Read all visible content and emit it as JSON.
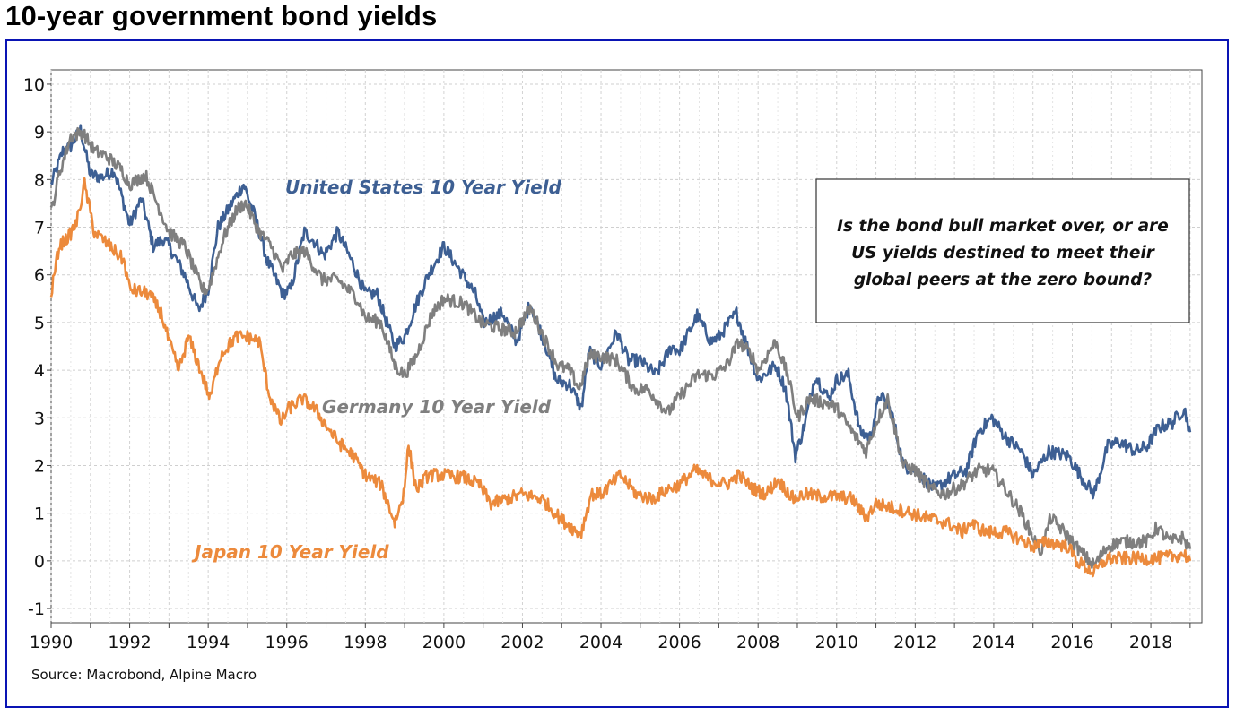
{
  "page": {
    "title": "10-year government bond yields",
    "source": "Source: Macrobond, Alpine Macro"
  },
  "chart_data": {
    "type": "line",
    "title": "10-year government bond yields",
    "xlabel": "",
    "ylabel": "",
    "xlim": [
      1990,
      2019.3
    ],
    "ylim": [
      -1.3,
      10.3
    ],
    "x_ticks": [
      "1990",
      "1992",
      "1994",
      "1996",
      "1998",
      "2000",
      "2002",
      "2004",
      "2006",
      "2008",
      "2010",
      "2012",
      "2014",
      "2016",
      "2018"
    ],
    "y_ticks": [
      "10",
      "9",
      "8",
      "7",
      "6",
      "5",
      "4",
      "3",
      "2",
      "1",
      "0",
      "-1"
    ],
    "grid": true,
    "annotation": {
      "lines": [
        "Is the bond bull market over, or are",
        "US yields destined to meet their",
        "global peers at the zero bound?"
      ]
    },
    "series": [
      {
        "name": "United States 10 Year Yield",
        "color": "#3d5f93",
        "points": [
          [
            1990.0,
            7.9
          ],
          [
            1990.3,
            8.6
          ],
          [
            1990.5,
            8.7
          ],
          [
            1990.75,
            9.05
          ],
          [
            1991.0,
            8.1
          ],
          [
            1991.3,
            8.05
          ],
          [
            1991.6,
            8.2
          ],
          [
            1991.85,
            7.5
          ],
          [
            1992.0,
            7.05
          ],
          [
            1992.3,
            7.6
          ],
          [
            1992.6,
            6.6
          ],
          [
            1992.85,
            6.75
          ],
          [
            1993.0,
            6.6
          ],
          [
            1993.4,
            6.0
          ],
          [
            1993.75,
            5.25
          ],
          [
            1994.0,
            5.7
          ],
          [
            1994.25,
            7.0
          ],
          [
            1994.6,
            7.5
          ],
          [
            1994.9,
            7.9
          ],
          [
            1995.2,
            7.2
          ],
          [
            1995.5,
            6.3
          ],
          [
            1995.9,
            5.6
          ],
          [
            1996.1,
            5.7
          ],
          [
            1996.45,
            6.9
          ],
          [
            1996.7,
            6.7
          ],
          [
            1996.95,
            6.4
          ],
          [
            1997.3,
            6.9
          ],
          [
            1997.7,
            6.2
          ],
          [
            1998.0,
            5.6
          ],
          [
            1998.3,
            5.6
          ],
          [
            1998.75,
            4.5
          ],
          [
            1999.0,
            4.7
          ],
          [
            1999.3,
            5.4
          ],
          [
            1999.6,
            6.0
          ],
          [
            2000.0,
            6.6
          ],
          [
            2000.4,
            6.1
          ],
          [
            2000.8,
            5.6
          ],
          [
            2001.0,
            5.0
          ],
          [
            2001.5,
            5.2
          ],
          [
            2001.85,
            4.6
          ],
          [
            2002.2,
            5.4
          ],
          [
            2002.6,
            4.5
          ],
          [
            2002.85,
            3.8
          ],
          [
            2003.2,
            3.7
          ],
          [
            2003.5,
            3.2
          ],
          [
            2003.7,
            4.4
          ],
          [
            2004.0,
            4.1
          ],
          [
            2004.4,
            4.8
          ],
          [
            2004.7,
            4.2
          ],
          [
            2005.0,
            4.2
          ],
          [
            2005.4,
            3.9
          ],
          [
            2005.8,
            4.5
          ],
          [
            2006.0,
            4.4
          ],
          [
            2006.45,
            5.15
          ],
          [
            2006.8,
            4.6
          ],
          [
            2007.0,
            4.7
          ],
          [
            2007.45,
            5.2
          ],
          [
            2007.8,
            4.3
          ],
          [
            2008.0,
            3.8
          ],
          [
            2008.45,
            4.1
          ],
          [
            2008.7,
            3.6
          ],
          [
            2008.95,
            2.2
          ],
          [
            2009.2,
            2.9
          ],
          [
            2009.45,
            3.9
          ],
          [
            2009.8,
            3.4
          ],
          [
            2010.0,
            3.8
          ],
          [
            2010.3,
            3.9
          ],
          [
            2010.6,
            2.7
          ],
          [
            2010.85,
            2.6
          ],
          [
            2011.1,
            3.5
          ],
          [
            2011.4,
            3.1
          ],
          [
            2011.7,
            2.0
          ],
          [
            2012.0,
            1.9
          ],
          [
            2012.5,
            1.5
          ],
          [
            2012.9,
            1.75
          ],
          [
            2013.3,
            1.9
          ],
          [
            2013.6,
            2.7
          ],
          [
            2013.95,
            3.0
          ],
          [
            2014.3,
            2.6
          ],
          [
            2014.7,
            2.3
          ],
          [
            2015.0,
            1.8
          ],
          [
            2015.4,
            2.3
          ],
          [
            2015.9,
            2.2
          ],
          [
            2016.2,
            1.8
          ],
          [
            2016.55,
            1.4
          ],
          [
            2016.9,
            2.4
          ],
          [
            2017.2,
            2.5
          ],
          [
            2017.6,
            2.3
          ],
          [
            2017.9,
            2.4
          ],
          [
            2018.2,
            2.8
          ],
          [
            2018.55,
            2.9
          ],
          [
            2018.85,
            3.2
          ],
          [
            2019.0,
            2.7
          ]
        ]
      },
      {
        "name": "Germany 10 Year Yield",
        "color": "#7f7f7f",
        "points": [
          [
            1990.0,
            7.3
          ],
          [
            1990.2,
            8.1
          ],
          [
            1990.5,
            8.9
          ],
          [
            1990.8,
            9.0
          ],
          [
            1991.1,
            8.6
          ],
          [
            1991.4,
            8.5
          ],
          [
            1991.8,
            8.2
          ],
          [
            1992.0,
            7.9
          ],
          [
            1992.4,
            8.1
          ],
          [
            1992.8,
            7.3
          ],
          [
            1993.0,
            6.9
          ],
          [
            1993.4,
            6.6
          ],
          [
            1993.85,
            5.7
          ],
          [
            1994.0,
            5.7
          ],
          [
            1994.4,
            6.8
          ],
          [
            1994.75,
            7.4
          ],
          [
            1994.95,
            7.5
          ],
          [
            1995.3,
            6.9
          ],
          [
            1995.6,
            6.6
          ],
          [
            1995.9,
            6.1
          ],
          [
            1996.1,
            6.4
          ],
          [
            1996.45,
            6.5
          ],
          [
            1996.9,
            5.9
          ],
          [
            1997.3,
            5.9
          ],
          [
            1997.8,
            5.5
          ],
          [
            1998.0,
            5.1
          ],
          [
            1998.4,
            5.0
          ],
          [
            1998.75,
            4.1
          ],
          [
            1999.0,
            3.9
          ],
          [
            1999.3,
            4.3
          ],
          [
            1999.7,
            5.2
          ],
          [
            2000.0,
            5.5
          ],
          [
            2000.5,
            5.4
          ],
          [
            2000.95,
            5.0
          ],
          [
            2001.3,
            4.9
          ],
          [
            2001.8,
            4.8
          ],
          [
            2002.2,
            5.3
          ],
          [
            2002.6,
            4.6
          ],
          [
            2002.9,
            4.1
          ],
          [
            2003.2,
            4.0
          ],
          [
            2003.45,
            3.6
          ],
          [
            2003.7,
            4.3
          ],
          [
            2004.0,
            4.3
          ],
          [
            2004.4,
            4.2
          ],
          [
            2004.85,
            3.6
          ],
          [
            2005.2,
            3.6
          ],
          [
            2005.7,
            3.1
          ],
          [
            2005.95,
            3.4
          ],
          [
            2006.45,
            3.9
          ],
          [
            2006.9,
            3.9
          ],
          [
            2007.2,
            4.1
          ],
          [
            2007.5,
            4.6
          ],
          [
            2007.85,
            4.3
          ],
          [
            2008.0,
            4.0
          ],
          [
            2008.45,
            4.6
          ],
          [
            2008.75,
            3.9
          ],
          [
            2009.0,
            3.0
          ],
          [
            2009.3,
            3.4
          ],
          [
            2009.8,
            3.3
          ],
          [
            2010.0,
            3.2
          ],
          [
            2010.4,
            2.7
          ],
          [
            2010.75,
            2.3
          ],
          [
            2011.0,
            2.9
          ],
          [
            2011.3,
            3.4
          ],
          [
            2011.7,
            2.0
          ],
          [
            2012.0,
            1.9
          ],
          [
            2012.4,
            1.5
          ],
          [
            2012.75,
            1.4
          ],
          [
            2013.2,
            1.6
          ],
          [
            2013.6,
            1.9
          ],
          [
            2013.95,
            1.9
          ],
          [
            2014.3,
            1.5
          ],
          [
            2014.7,
            1.0
          ],
          [
            2015.0,
            0.5
          ],
          [
            2015.2,
            0.2
          ],
          [
            2015.45,
            0.9
          ],
          [
            2015.8,
            0.6
          ],
          [
            2016.2,
            0.2
          ],
          [
            2016.55,
            -0.1
          ],
          [
            2016.9,
            0.3
          ],
          [
            2017.2,
            0.4
          ],
          [
            2017.6,
            0.4
          ],
          [
            2017.9,
            0.4
          ],
          [
            2018.15,
            0.7
          ],
          [
            2018.5,
            0.4
          ],
          [
            2018.8,
            0.5
          ],
          [
            2019.0,
            0.25
          ]
        ]
      },
      {
        "name": "Japan 10 Year Yield",
        "color": "#ec8a3c",
        "points": [
          [
            1990.0,
            5.6
          ],
          [
            1990.2,
            6.6
          ],
          [
            1990.45,
            6.8
          ],
          [
            1990.65,
            7.1
          ],
          [
            1990.85,
            7.9
          ],
          [
            1991.1,
            6.9
          ],
          [
            1991.5,
            6.6
          ],
          [
            1991.85,
            6.3
          ],
          [
            1992.0,
            5.7
          ],
          [
            1992.5,
            5.6
          ],
          [
            1992.8,
            5.2
          ],
          [
            1993.0,
            4.6
          ],
          [
            1993.25,
            4.0
          ],
          [
            1993.5,
            4.7
          ],
          [
            1993.8,
            4.0
          ],
          [
            1994.05,
            3.4
          ],
          [
            1994.3,
            4.3
          ],
          [
            1994.7,
            4.7
          ],
          [
            1995.0,
            4.7
          ],
          [
            1995.3,
            4.6
          ],
          [
            1995.55,
            3.5
          ],
          [
            1995.85,
            2.9
          ],
          [
            1996.05,
            3.2
          ],
          [
            1996.4,
            3.4
          ],
          [
            1996.7,
            3.2
          ],
          [
            1996.95,
            2.9
          ],
          [
            1997.3,
            2.5
          ],
          [
            1997.7,
            2.2
          ],
          [
            1998.0,
            1.8
          ],
          [
            1998.4,
            1.6
          ],
          [
            1998.75,
            0.8
          ],
          [
            1998.95,
            1.3
          ],
          [
            1999.1,
            2.4
          ],
          [
            1999.3,
            1.5
          ],
          [
            1999.6,
            1.8
          ],
          [
            2000.0,
            1.8
          ],
          [
            2000.5,
            1.75
          ],
          [
            2000.9,
            1.6
          ],
          [
            2001.2,
            1.2
          ],
          [
            2001.6,
            1.3
          ],
          [
            2002.0,
            1.4
          ],
          [
            2002.5,
            1.3
          ],
          [
            2002.95,
            0.9
          ],
          [
            2003.4,
            0.6
          ],
          [
            2003.5,
            0.6
          ],
          [
            2003.75,
            1.4
          ],
          [
            2004.0,
            1.4
          ],
          [
            2004.5,
            1.8
          ],
          [
            2004.9,
            1.4
          ],
          [
            2005.3,
            1.3
          ],
          [
            2005.7,
            1.5
          ],
          [
            2006.0,
            1.6
          ],
          [
            2006.4,
            1.9
          ],
          [
            2006.8,
            1.7
          ],
          [
            2007.2,
            1.6
          ],
          [
            2007.5,
            1.8
          ],
          [
            2007.9,
            1.5
          ],
          [
            2008.2,
            1.4
          ],
          [
            2008.5,
            1.7
          ],
          [
            2008.9,
            1.3
          ],
          [
            2009.2,
            1.4
          ],
          [
            2009.6,
            1.35
          ],
          [
            2010.0,
            1.35
          ],
          [
            2010.4,
            1.3
          ],
          [
            2010.75,
            0.9
          ],
          [
            2011.0,
            1.2
          ],
          [
            2011.5,
            1.1
          ],
          [
            2011.9,
            1.0
          ],
          [
            2012.3,
            0.9
          ],
          [
            2012.8,
            0.8
          ],
          [
            2013.2,
            0.6
          ],
          [
            2013.4,
            0.8
          ],
          [
            2013.8,
            0.6
          ],
          [
            2014.3,
            0.6
          ],
          [
            2014.8,
            0.4
          ],
          [
            2015.0,
            0.3
          ],
          [
            2015.4,
            0.4
          ],
          [
            2015.9,
            0.3
          ],
          [
            2016.1,
            0.0
          ],
          [
            2016.55,
            -0.25
          ],
          [
            2016.9,
            0.05
          ],
          [
            2017.3,
            0.05
          ],
          [
            2017.8,
            0.05
          ],
          [
            2018.2,
            0.05
          ],
          [
            2018.6,
            0.1
          ],
          [
            2018.85,
            0.15
          ],
          [
            2019.0,
            0.0
          ]
        ]
      }
    ],
    "series_labels": [
      "United States 10 Year Yield",
      "Germany 10 Year Yield",
      "Japan 10 Year Yield"
    ]
  }
}
